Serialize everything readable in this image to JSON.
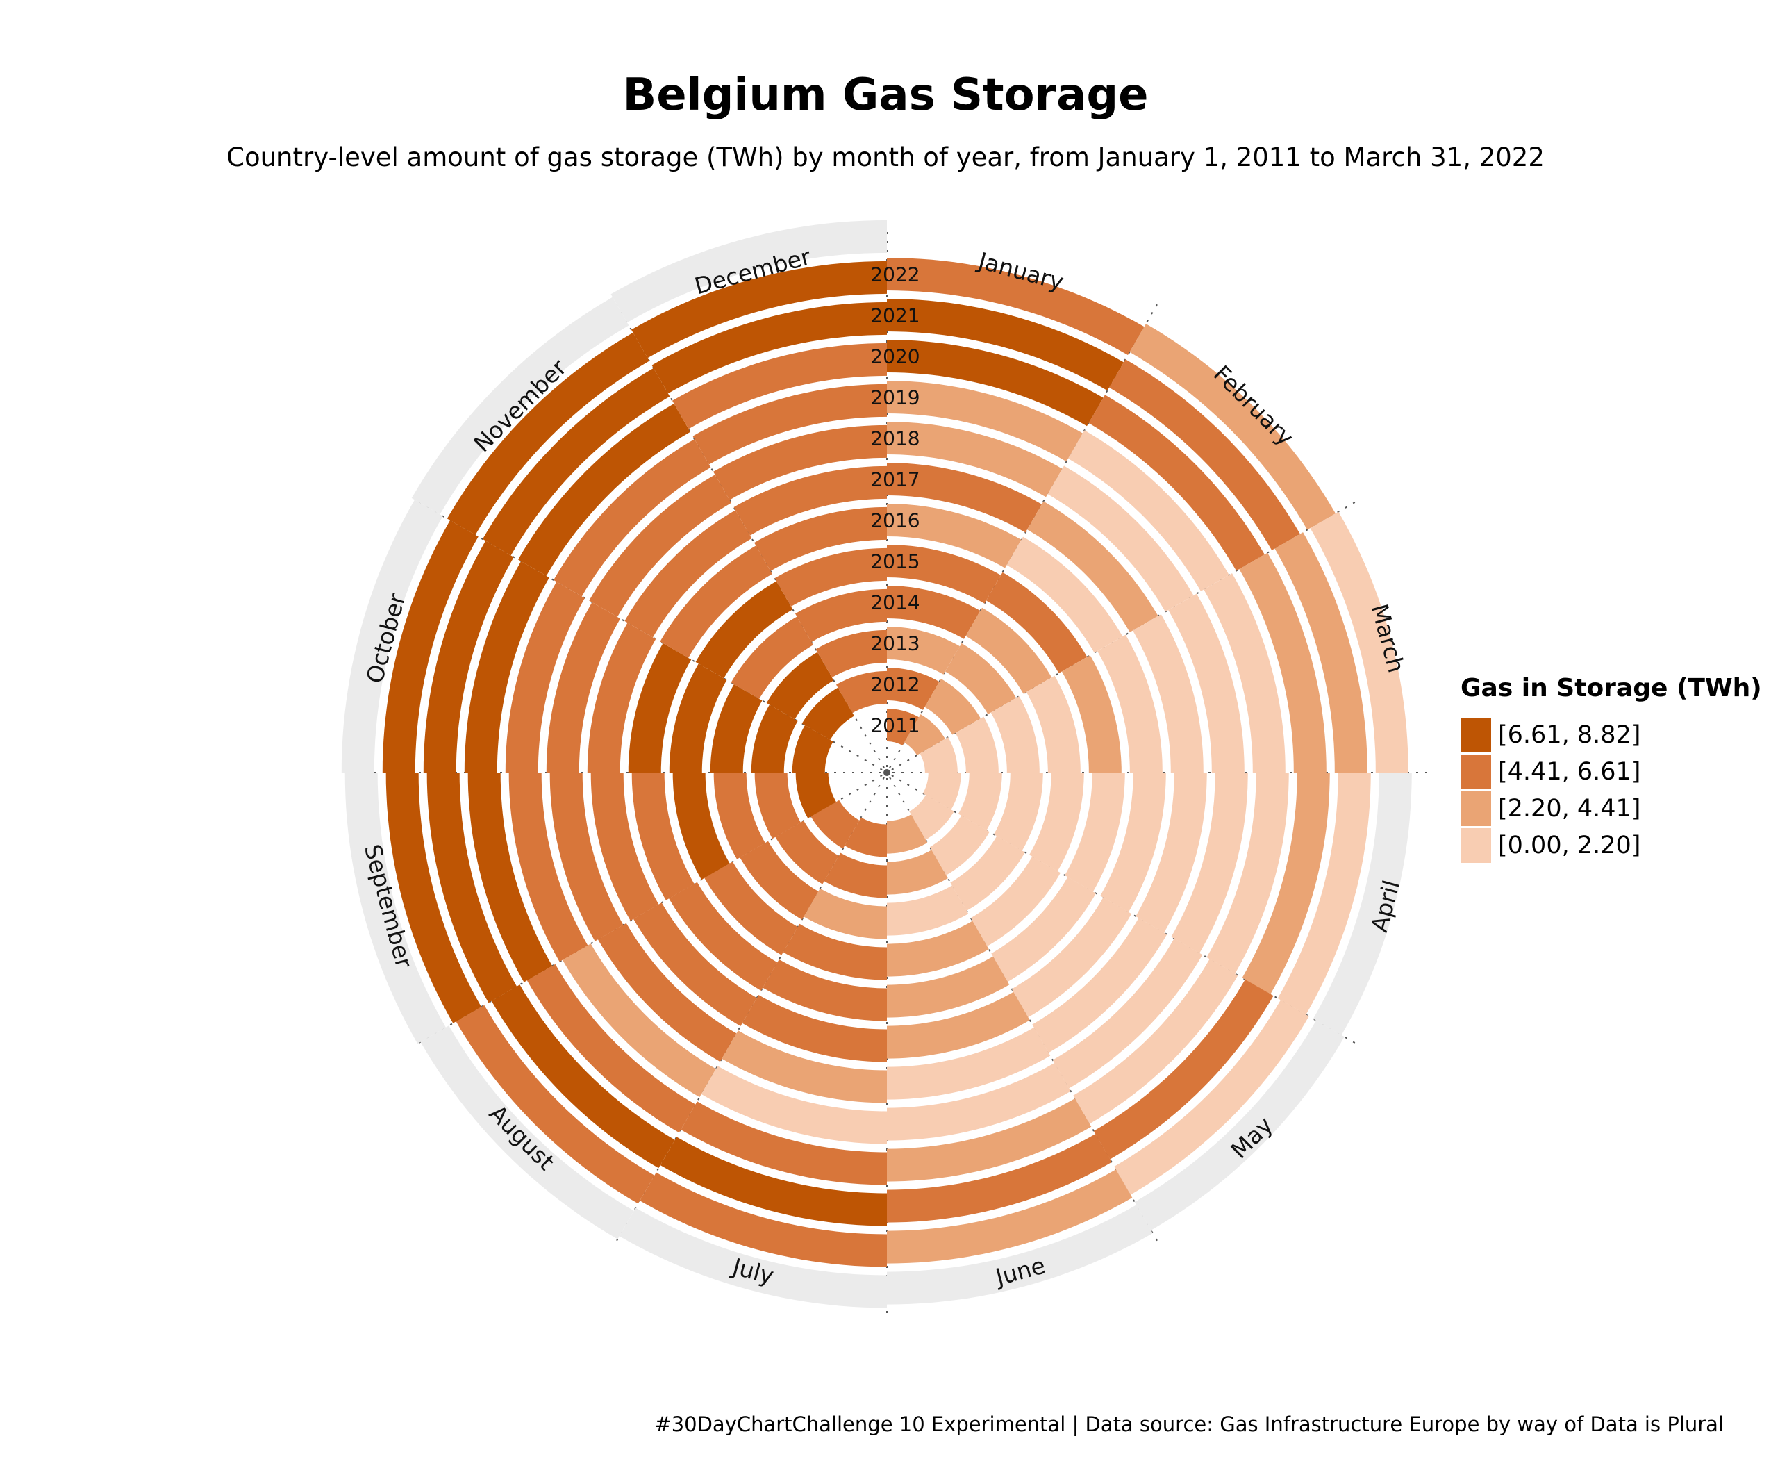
{
  "title": "Belgium Gas Storage",
  "subtitle": "Country-level amount of gas storage (TWh) by month of year, from January 1, 2011 to March 31, 2022",
  "caption": "#30DayChartChallenge 10 Experimental | Data source: Gas Infrastructure Europe by way of Data is Plural",
  "legend": {
    "title": "Gas in Storage (TWh)",
    "items": [
      {
        "label": "[6.61, 8.82]",
        "color": "#BE5504"
      },
      {
        "label": "[4.41, 6.61]",
        "color": "#D8763A"
      },
      {
        "label": "[2.20, 4.41]",
        "color": "#EAA474"
      },
      {
        "label": "[0.00, 2.20]",
        "color": "#F8CDB2"
      }
    ]
  },
  "chart_data": {
    "type": "heatmap",
    "layout": "spiral / polar (one ring per year, one sector per month)",
    "value_unit": "TWh",
    "years": [
      "2011",
      "2012",
      "2013",
      "2014",
      "2015",
      "2016",
      "2017",
      "2018",
      "2019",
      "2020",
      "2021",
      "2022"
    ],
    "months": [
      "January",
      "February",
      "March",
      "April",
      "May",
      "June",
      "July",
      "August",
      "September",
      "October",
      "November",
      "December"
    ],
    "bins": [
      {
        "range": [
          6.61,
          8.82
        ],
        "color": "#BE5504"
      },
      {
        "range": [
          4.41,
          6.61
        ],
        "color": "#D8763A"
      },
      {
        "range": [
          2.2,
          4.41
        ],
        "color": "#EAA474"
      },
      {
        "range": [
          0.0,
          2.2
        ],
        "color": "#F8CDB2"
      }
    ],
    "missing_color": "#EBEBEB",
    "values_approx_TWh": [
      [
        5.5,
        3.5,
        1.5,
        0.8,
        1.5,
        3.5,
        5.5,
        6.0,
        7.0,
        7.5,
        7.0,
        6.0
      ],
      [
        5.0,
        3.5,
        2.0,
        1.5,
        2.0,
        3.0,
        4.5,
        5.5,
        6.5,
        7.0,
        7.0,
        5.5
      ],
      [
        3.5,
        2.5,
        1.0,
        0.5,
        0.8,
        1.5,
        3.0,
        5.0,
        6.0,
        7.0,
        6.5,
        5.0
      ],
      [
        5.0,
        3.5,
        2.0,
        1.0,
        1.5,
        3.5,
        5.5,
        6.5,
        7.0,
        7.5,
        7.0,
        6.0
      ],
      [
        6.5,
        5.0,
        3.5,
        1.5,
        1.0,
        3.0,
        4.5,
        5.0,
        6.0,
        7.0,
        6.0,
        5.0
      ],
      [
        4.0,
        2.0,
        1.0,
        0.8,
        1.5,
        3.0,
        4.5,
        5.0,
        5.5,
        6.0,
        5.5,
        4.5
      ],
      [
        5.0,
        3.0,
        1.0,
        0.5,
        1.0,
        2.0,
        3.5,
        4.5,
        5.5,
        6.0,
        5.5,
        5.0
      ],
      [
        3.5,
        2.0,
        1.0,
        0.5,
        1.0,
        2.0,
        1.5,
        3.5,
        5.0,
        5.5,
        5.0,
        4.5
      ],
      [
        3.5,
        2.0,
        1.0,
        0.8,
        1.5,
        3.0,
        4.5,
        6.0,
        7.0,
        7.5,
        7.5,
        6.0
      ],
      [
        7.0,
        5.0,
        4.0,
        3.0,
        4.5,
        6.0,
        7.5,
        8.0,
        8.5,
        8.5,
        8.0,
        7.5
      ],
      [
        7.0,
        5.0,
        3.0,
        2.0,
        1.5,
        3.0,
        5.0,
        6.5,
        7.0,
        8.0,
        7.5,
        7.0
      ],
      [
        5.0,
        3.5,
        1.5,
        null,
        null,
        null,
        null,
        null,
        null,
        null,
        null,
        null
      ]
    ]
  }
}
